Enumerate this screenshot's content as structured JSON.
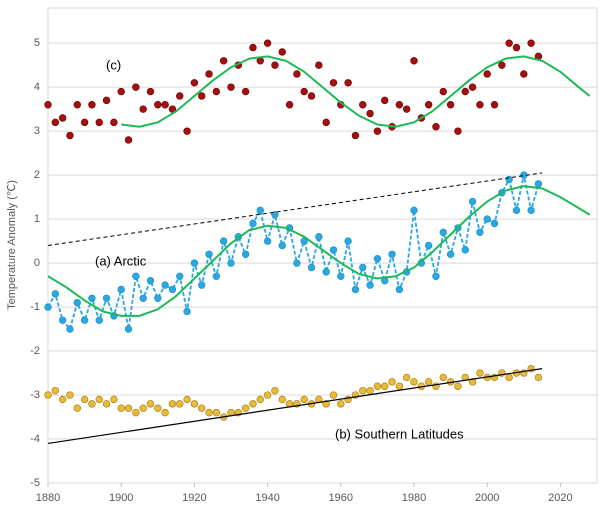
{
  "chart_data": {
    "type": "line",
    "ylabel": "Temperature Anomaly (℃)",
    "annotations": [
      "(c)",
      "(a) Arctic",
      "(b) Southern Latitudes"
    ],
    "xlim": [
      1880,
      2030
    ],
    "xticks": [
      1880,
      1900,
      1920,
      1940,
      1960,
      1980,
      2000,
      2020
    ],
    "ylim": [
      -5,
      5.8
    ],
    "yticks": [
      -5,
      -4,
      -3,
      -2,
      -1,
      0,
      1,
      2,
      3,
      4,
      5
    ],
    "grid": true,
    "x": [
      1880,
      1882,
      1884,
      1886,
      1888,
      1890,
      1892,
      1894,
      1896,
      1898,
      1900,
      1902,
      1904,
      1906,
      1908,
      1910,
      1912,
      1914,
      1916,
      1918,
      1920,
      1922,
      1924,
      1926,
      1928,
      1930,
      1932,
      1934,
      1936,
      1938,
      1940,
      1942,
      1944,
      1946,
      1948,
      1950,
      1952,
      1954,
      1956,
      1958,
      1960,
      1962,
      1964,
      1966,
      1968,
      1970,
      1972,
      1974,
      1976,
      1978,
      1980,
      1982,
      1984,
      1986,
      1988,
      1990,
      1992,
      1994,
      1996,
      1998,
      2000,
      2002,
      2004,
      2006,
      2008,
      2010,
      2012,
      2014
    ],
    "series": [
      {
        "kind": "scatter",
        "color": "#a50f0f",
        "edge": "#6b0000",
        "values": [
          3.6,
          3.2,
          3.3,
          2.9,
          3.6,
          3.2,
          3.6,
          3.2,
          3.7,
          3.2,
          3.9,
          2.8,
          4.0,
          3.5,
          3.9,
          3.6,
          3.6,
          3.5,
          3.8,
          3.0,
          4.1,
          3.8,
          4.3,
          3.9,
          4.6,
          4.0,
          4.5,
          3.9,
          4.9,
          4.6,
          5.0,
          4.5,
          4.8,
          3.6,
          4.3,
          3.9,
          3.8,
          4.5,
          3.2,
          4.1,
          3.6,
          4.1,
          2.9,
          3.6,
          3.4,
          3.0,
          3.7,
          3.1,
          3.6,
          3.5,
          4.6,
          3.3,
          3.6,
          3.1,
          3.9,
          3.6,
          3.0,
          3.9,
          4.0,
          3.6,
          4.3,
          3.6,
          4.5,
          5.0,
          4.9,
          4.3,
          5.0,
          4.7
        ]
      },
      {
        "kind": "dashed-markers",
        "color": "#2aa7e0",
        "edge": "#1f8fc4",
        "values": [
          -1.0,
          -0.7,
          -1.3,
          -1.5,
          -0.9,
          -1.3,
          -0.8,
          -1.3,
          -0.8,
          -1.2,
          -0.6,
          -1.5,
          -0.3,
          -0.8,
          -0.4,
          -0.8,
          -0.5,
          -0.6,
          -0.3,
          -1.1,
          0.0,
          -0.5,
          0.2,
          -0.3,
          0.5,
          0.0,
          0.6,
          0.2,
          0.9,
          1.2,
          0.5,
          1.1,
          0.4,
          0.8,
          0.0,
          0.5,
          -0.1,
          0.6,
          -0.2,
          0.3,
          -0.3,
          0.5,
          -0.6,
          -0.1,
          -0.5,
          0.1,
          -0.4,
          0.2,
          -0.6,
          -0.2,
          1.2,
          0.0,
          0.4,
          -0.3,
          0.7,
          0.2,
          0.8,
          0.3,
          1.4,
          0.7,
          1.0,
          0.9,
          1.6,
          1.9,
          1.2,
          2.0,
          1.2,
          1.8
        ]
      },
      {
        "kind": "scatter",
        "color": "#e8b93a",
        "edge": "#a07a10",
        "values": [
          -3.0,
          -2.9,
          -3.1,
          -3.0,
          -3.3,
          -3.1,
          -3.2,
          -3.1,
          -3.2,
          -3.1,
          -3.3,
          -3.3,
          -3.4,
          -3.3,
          -3.2,
          -3.3,
          -3.4,
          -3.2,
          -3.2,
          -3.1,
          -3.2,
          -3.3,
          -3.4,
          -3.4,
          -3.5,
          -3.4,
          -3.4,
          -3.3,
          -3.2,
          -3.1,
          -3.0,
          -2.9,
          -3.1,
          -3.2,
          -3.2,
          -3.1,
          -3.2,
          -3.1,
          -3.2,
          -3.0,
          -3.2,
          -3.1,
          -3.0,
          -2.9,
          -2.9,
          -2.8,
          -2.8,
          -2.7,
          -2.8,
          -2.6,
          -2.7,
          -2.8,
          -2.7,
          -2.8,
          -2.6,
          -2.7,
          -2.8,
          -2.6,
          -2.7,
          -2.5,
          -2.6,
          -2.6,
          -2.5,
          -2.6,
          -2.5,
          -2.5,
          -2.4,
          -2.6
        ]
      },
      {
        "kind": "line",
        "color": "#1db954",
        "x": [
          1900,
          1905,
          1910,
          1915,
          1920,
          1925,
          1930,
          1935,
          1940,
          1945,
          1950,
          1955,
          1960,
          1965,
          1970,
          1975,
          1980,
          1985,
          1990,
          1995,
          2000,
          2005,
          2010,
          2015,
          2020,
          2025,
          2028
        ],
        "values": [
          3.15,
          3.1,
          3.2,
          3.45,
          3.8,
          4.15,
          4.45,
          4.65,
          4.7,
          4.6,
          4.35,
          4.0,
          3.65,
          3.35,
          3.15,
          3.1,
          3.2,
          3.45,
          3.8,
          4.15,
          4.45,
          4.65,
          4.7,
          4.6,
          4.35,
          4.0,
          3.8
        ]
      },
      {
        "kind": "line",
        "color": "#1db954",
        "x": [
          1880,
          1885,
          1890,
          1895,
          1900,
          1905,
          1910,
          1915,
          1920,
          1925,
          1930,
          1935,
          1940,
          1945,
          1950,
          1955,
          1960,
          1965,
          1970,
          1975,
          1980,
          1985,
          1990,
          1995,
          2000,
          2005,
          2010,
          2015,
          2020,
          2025,
          2028
        ],
        "values": [
          -0.3,
          -0.55,
          -0.85,
          -1.1,
          -1.2,
          -1.2,
          -1.05,
          -0.75,
          -0.35,
          0.05,
          0.45,
          0.75,
          0.85,
          0.8,
          0.6,
          0.3,
          0.0,
          -0.25,
          -0.35,
          -0.3,
          -0.1,
          0.25,
          0.65,
          1.05,
          1.4,
          1.65,
          1.75,
          1.7,
          1.5,
          1.25,
          1.1
        ]
      },
      {
        "kind": "dashed",
        "color": "#000000",
        "x": [
          1880,
          2015
        ],
        "values": [
          0.4,
          2.05
        ]
      },
      {
        "kind": "trend",
        "color": "#000000",
        "x": [
          1880,
          2015
        ],
        "values": [
          -4.1,
          -2.4
        ]
      }
    ]
  }
}
